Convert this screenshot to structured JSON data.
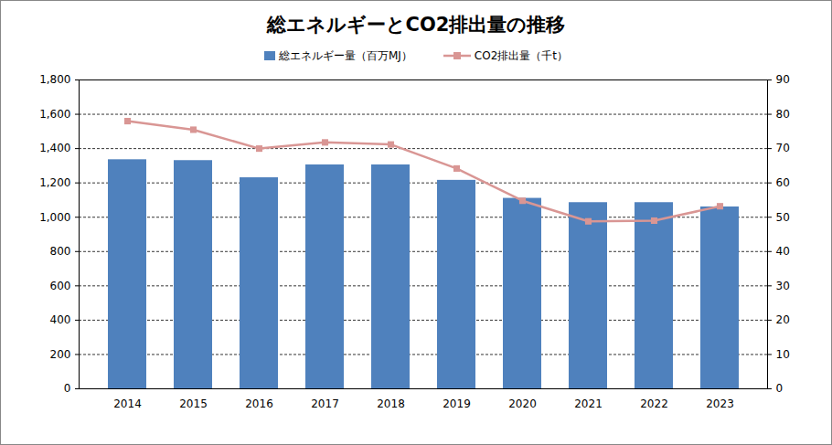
{
  "chart_data": {
    "type": "bar",
    "title": "総エネルギーとCO2排出量の推移",
    "categories": [
      "2014",
      "2015",
      "2016",
      "2017",
      "2018",
      "2019",
      "2020",
      "2021",
      "2022",
      "2023"
    ],
    "series": [
      {
        "name": "総エネルギー量（百万MJ）",
        "type": "bar",
        "color": "#4f81bd",
        "values": [
          1335,
          1330,
          1230,
          1305,
          1305,
          1215,
          1110,
          1085,
          1085,
          1060
        ]
      },
      {
        "name": "CO2排出量（千t）",
        "type": "line",
        "axis": "y2",
        "color": "#d99694",
        "marker": "square",
        "line_style": "solid",
        "values": [
          78,
          75.5,
          70,
          71.8,
          71.2,
          64.2,
          54.8,
          48.8,
          49.0,
          53.2
        ]
      }
    ],
    "ylim": [
      0,
      1800
    ],
    "yticks": [
      0,
      200,
      400,
      600,
      800,
      {
        "value": 1000,
        "label": "1,000"
      },
      {
        "value": 1200,
        "label": "1,200"
      },
      {
        "value": 1400,
        "label": "1,400"
      },
      {
        "value": 1600,
        "label": "1,600"
      },
      {
        "value": 1800,
        "label": "1,800"
      }
    ],
    "y2lim": [
      0,
      90
    ],
    "y2ticks": [
      0,
      10,
      20,
      30,
      40,
      50,
      60,
      70,
      80,
      90
    ],
    "grid": true,
    "legend": "top"
  }
}
